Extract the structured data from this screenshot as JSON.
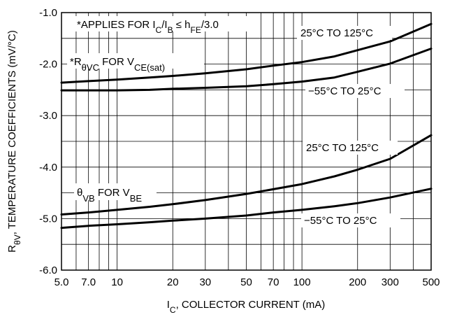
{
  "chart_data": {
    "type": "line",
    "x_scale": "log",
    "x_range": [
      5,
      500
    ],
    "y_range": [
      -6.0,
      -1.0
    ],
    "grid": true,
    "x_ticks": [
      {
        "value": 5,
        "label": "5.0"
      },
      {
        "value": 7,
        "label": "7.0"
      },
      {
        "value": 10,
        "label": "10"
      },
      {
        "value": 20,
        "label": "20"
      },
      {
        "value": 30,
        "label": "30"
      },
      {
        "value": 50,
        "label": "50"
      },
      {
        "value": 70,
        "label": "70"
      },
      {
        "value": 100,
        "label": "100"
      },
      {
        "value": 200,
        "label": "200"
      },
      {
        "value": 300,
        "label": "300"
      },
      {
        "value": 500,
        "label": "500"
      }
    ],
    "y_ticks": [
      {
        "value": -1.0,
        "label": "-1.0"
      },
      {
        "value": -2.0,
        "label": "-2.0"
      },
      {
        "value": -3.0,
        "label": "-3.0"
      },
      {
        "value": -4.0,
        "label": "-4.0"
      },
      {
        "value": -5.0,
        "label": "-5.0"
      },
      {
        "value": -6.0,
        "label": "-6.0"
      }
    ],
    "xlabel": {
      "pre": "I",
      "sub": "C",
      "post": ", COLLECTOR CURRENT (mA)"
    },
    "ylabel": {
      "pre": "R",
      "sub": "θV",
      "post": ", TEMPERATURE COEFFICIENTS (mV/°C)"
    },
    "series": [
      {
        "name": "R θVC 25°C TO 125°C",
        "x": [
          5,
          7,
          10,
          15,
          20,
          30,
          50,
          70,
          100,
          150,
          200,
          300,
          500
        ],
        "y": [
          -2.36,
          -2.33,
          -2.3,
          -2.26,
          -2.23,
          -2.18,
          -2.1,
          -2.03,
          -1.96,
          -1.85,
          -1.73,
          -1.56,
          -1.22
        ]
      },
      {
        "name": "R θVC −55°C TO 25°C",
        "x": [
          5,
          7,
          10,
          15,
          20,
          30,
          50,
          70,
          100,
          150,
          200,
          300,
          500
        ],
        "y": [
          -2.51,
          -2.51,
          -2.51,
          -2.5,
          -2.48,
          -2.46,
          -2.43,
          -2.39,
          -2.34,
          -2.26,
          -2.15,
          -1.99,
          -1.7
        ]
      },
      {
        "name": "θVB 25°C TO 125°C",
        "x": [
          5,
          7,
          10,
          15,
          20,
          30,
          50,
          70,
          100,
          150,
          200,
          300,
          500
        ],
        "y": [
          -4.92,
          -4.88,
          -4.83,
          -4.77,
          -4.72,
          -4.64,
          -4.52,
          -4.43,
          -4.33,
          -4.18,
          -4.05,
          -3.84,
          -3.38
        ]
      },
      {
        "name": "θVB −55°C TO 25°C",
        "x": [
          5,
          7,
          10,
          15,
          20,
          30,
          50,
          70,
          100,
          150,
          200,
          300,
          500
        ],
        "y": [
          -5.18,
          -5.14,
          -5.11,
          -5.07,
          -5.04,
          -5.0,
          -4.94,
          -4.88,
          -4.83,
          -4.76,
          -4.7,
          -4.59,
          -4.42
        ]
      }
    ],
    "annotations": {
      "applies": {
        "pre": "*APPLIES FOR I",
        "sub1": "C",
        "mid1": "/I",
        "sub2": "B",
        "mid2": " ≤ h",
        "sub3": "FE",
        "post": "/3.0"
      },
      "rvc": {
        "pre": "*R",
        "sub": "θVC",
        "mid": " FOR V",
        "sub2": "CE(sat)"
      },
      "vb": {
        "pre": "θ",
        "sub": "VB",
        "mid": " FOR V",
        "sub2": "BE"
      },
      "t1": "25°C TO 125°C",
      "t2": "−55°C TO 25°C",
      "t3": "25°C TO 125°C",
      "t4": "−55°C TO 25°C"
    }
  }
}
